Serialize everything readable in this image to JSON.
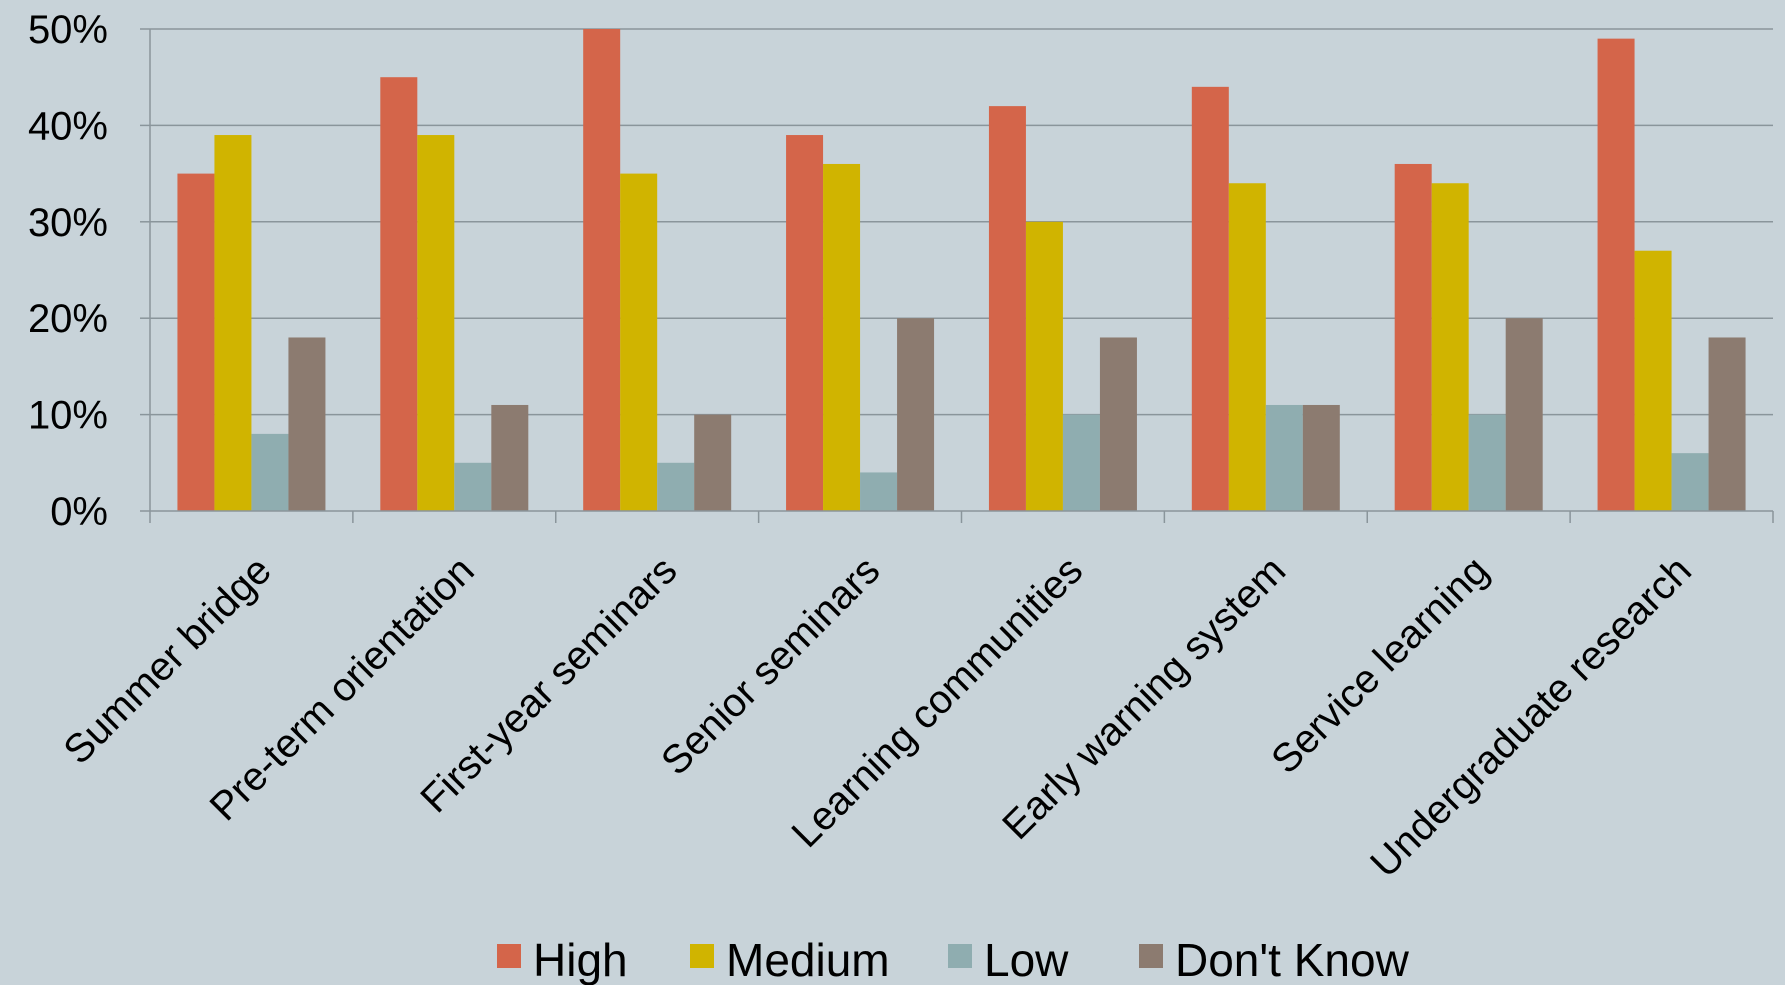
{
  "chart_data": {
    "type": "bar",
    "categories": [
      "Summer bridge",
      "Pre-term orientation",
      "First-year seminars",
      "Senior seminars",
      "Learning communities",
      "Early warning system",
      "Service learning",
      "Undergraduate research"
    ],
    "series": [
      {
        "name": "High",
        "color": "#d4654a",
        "values": [
          35,
          45,
          50,
          39,
          42,
          44,
          36,
          49
        ]
      },
      {
        "name": "Medium",
        "color": "#d0b400",
        "values": [
          39,
          39,
          35,
          36,
          30,
          34,
          34,
          27
        ]
      },
      {
        "name": "Low",
        "color": "#8fadb0",
        "values": [
          8,
          5,
          5,
          4,
          10,
          11,
          10,
          6
        ]
      },
      {
        "name": "Don't Know",
        "color": "#8c7b70",
        "values": [
          18,
          11,
          10,
          20,
          18,
          11,
          20,
          18
        ]
      }
    ],
    "y_ticks": [
      "0%",
      "10%",
      "20%",
      "30%",
      "40%",
      "50%"
    ],
    "y_tick_values": [
      0,
      10,
      20,
      30,
      40,
      50
    ],
    "ylim": [
      0,
      50
    ],
    "grid": true,
    "legend_position": "bottom",
    "title": "",
    "xlabel": "",
    "ylabel": "",
    "background_color": "#c8d3d9"
  }
}
